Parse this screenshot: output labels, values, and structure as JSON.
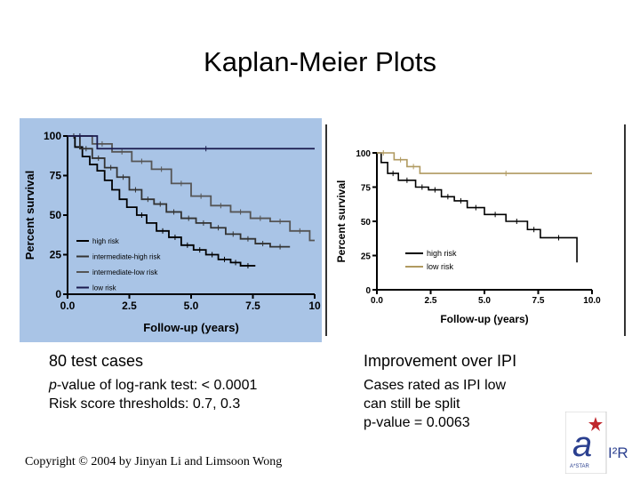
{
  "slide": {
    "title": "Kaplan-Meier Plots",
    "footer": "Copyright © 2004 by Jinyan Li and Limsoon Wong",
    "logo": {
      "org": "A*STAR",
      "mark": "I²R",
      "accent": "#c0282d",
      "primary": "#2a3f8f"
    }
  },
  "captions": {
    "left": {
      "head": "80 test cases",
      "line1_prefix": "p",
      "line1_rest": "-value of log-rank test: < 0.0001",
      "line2": "Risk score thresholds: 0.7, 0.3"
    },
    "right": {
      "head": "Improvement over IPI",
      "line1": "Cases rated as IPI low",
      "line2": "can still be split",
      "line3": "p-value = 0.0063"
    }
  },
  "chart_data": [
    {
      "type": "line",
      "style": "step",
      "xlabel": "Follow-up (years)",
      "ylabel": "Percent survival",
      "xlim": [
        0,
        10
      ],
      "ylim": [
        0,
        100
      ],
      "xticks": [
        "0.0",
        "2.5",
        "5.0",
        "7.5",
        "10"
      ],
      "yticks": [
        "0",
        "25",
        "50",
        "75",
        "100"
      ],
      "background": "#a9c4e6",
      "legend_position": "bottom-left",
      "series": [
        {
          "name": "high risk",
          "color": "#000000",
          "dash": "",
          "points": [
            [
              0,
              100
            ],
            [
              0.3,
              93
            ],
            [
              0.6,
              87
            ],
            [
              0.9,
              82
            ],
            [
              1.2,
              78
            ],
            [
              1.5,
              72
            ],
            [
              1.8,
              66
            ],
            [
              2.1,
              60
            ],
            [
              2.4,
              55
            ],
            [
              2.8,
              50
            ],
            [
              3.2,
              45
            ],
            [
              3.6,
              40
            ],
            [
              4.1,
              36
            ],
            [
              4.6,
              31
            ],
            [
              5.1,
              28
            ],
            [
              5.6,
              25
            ],
            [
              6.1,
              22
            ],
            [
              6.6,
              20
            ],
            [
              7.0,
              18
            ],
            [
              7.6,
              18
            ]
          ]
        },
        {
          "name": "intermediate-high risk",
          "color": "#333333",
          "dash": "",
          "points": [
            [
              0,
              100
            ],
            [
              0.5,
              92
            ],
            [
              1.0,
              86
            ],
            [
              1.5,
              80
            ],
            [
              2.0,
              74
            ],
            [
              2.5,
              66
            ],
            [
              3.0,
              60
            ],
            [
              3.5,
              57
            ],
            [
              4.0,
              52
            ],
            [
              4.6,
              48
            ],
            [
              5.2,
              45
            ],
            [
              5.8,
              42
            ],
            [
              6.4,
              38
            ],
            [
              7.0,
              35
            ],
            [
              7.6,
              32
            ],
            [
              8.2,
              30
            ],
            [
              9.0,
              30
            ]
          ]
        },
        {
          "name": "intermediate-low risk",
          "color": "#555555",
          "dash": "",
          "points": [
            [
              0,
              100
            ],
            [
              1.0,
              95
            ],
            [
              1.8,
              90
            ],
            [
              2.6,
              84
            ],
            [
              3.4,
              79
            ],
            [
              4.2,
              70
            ],
            [
              5.0,
              62
            ],
            [
              5.8,
              56
            ],
            [
              6.6,
              52
            ],
            [
              7.4,
              48
            ],
            [
              8.2,
              46
            ],
            [
              9.0,
              40
            ],
            [
              9.8,
              34
            ],
            [
              10,
              34
            ]
          ]
        },
        {
          "name": "low risk",
          "color": "#1a1a4d",
          "dash": "",
          "points": [
            [
              0,
              100
            ],
            [
              1.0,
              100
            ],
            [
              1.2,
              92
            ],
            [
              10,
              92
            ]
          ]
        }
      ]
    },
    {
      "type": "line",
      "style": "step",
      "xlabel": "Follow-up (years)",
      "ylabel": "Percent survival",
      "xlim": [
        0,
        10
      ],
      "ylim": [
        0,
        100
      ],
      "xticks": [
        "0.0",
        "2.5",
        "5.0",
        "7.5",
        "10.0"
      ],
      "yticks": [
        "0",
        "25",
        "50",
        "75",
        "100"
      ],
      "background": "#ffffff",
      "legend_position": "bottom-left",
      "series": [
        {
          "name": "high risk",
          "color": "#000000",
          "points": [
            [
              0,
              100
            ],
            [
              0.2,
              93
            ],
            [
              0.5,
              85
            ],
            [
              1.0,
              80
            ],
            [
              1.8,
              75
            ],
            [
              2.4,
              73
            ],
            [
              3.0,
              68
            ],
            [
              3.6,
              65
            ],
            [
              4.2,
              60
            ],
            [
              5.0,
              55
            ],
            [
              6.0,
              50
            ],
            [
              7.0,
              44
            ],
            [
              7.6,
              38
            ],
            [
              9.3,
              38
            ],
            [
              9.3,
              20
            ]
          ]
        },
        {
          "name": "low risk",
          "color": "#b09a60",
          "points": [
            [
              0,
              100
            ],
            [
              0.6,
              100
            ],
            [
              0.8,
              95
            ],
            [
              1.4,
              90
            ],
            [
              2.0,
              85
            ],
            [
              10,
              85
            ]
          ]
        }
      ]
    }
  ]
}
